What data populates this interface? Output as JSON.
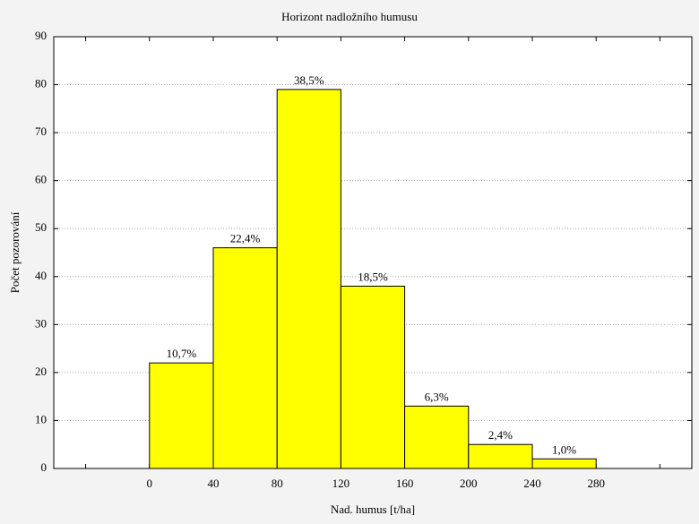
{
  "chart_data": {
    "type": "histogram",
    "title": "Horizont nadložního humusu",
    "x_label": "Nad. humus [t/ha]",
    "y_label": "Počet pozorování",
    "bins": [
      0,
      40,
      80,
      120,
      160,
      200,
      240,
      280
    ],
    "values": [
      22,
      46,
      79,
      38,
      13,
      5,
      2
    ],
    "percentages": {
      "values": [
        10.7,
        22.4,
        38.5,
        18.5,
        6.3,
        2.4,
        1.0
      ],
      "value_labels": [
        "10,7%",
        "22,4%",
        "38,5%",
        "18,5%",
        "6,3%",
        "2,4%",
        "1,0%"
      ]
    },
    "color": "#ffff00",
    "xlim": [
      -60,
      340
    ],
    "xticks": [
      {
        "value": -40,
        "label": null
      },
      0,
      40,
      80,
      120,
      160,
      200,
      240,
      280,
      {
        "value": 320,
        "label": null
      }
    ],
    "ylim": [
      0,
      90
    ],
    "yticks": [
      0,
      10,
      20,
      30,
      40,
      50,
      60,
      70,
      80,
      90
    ],
    "grid": true
  }
}
